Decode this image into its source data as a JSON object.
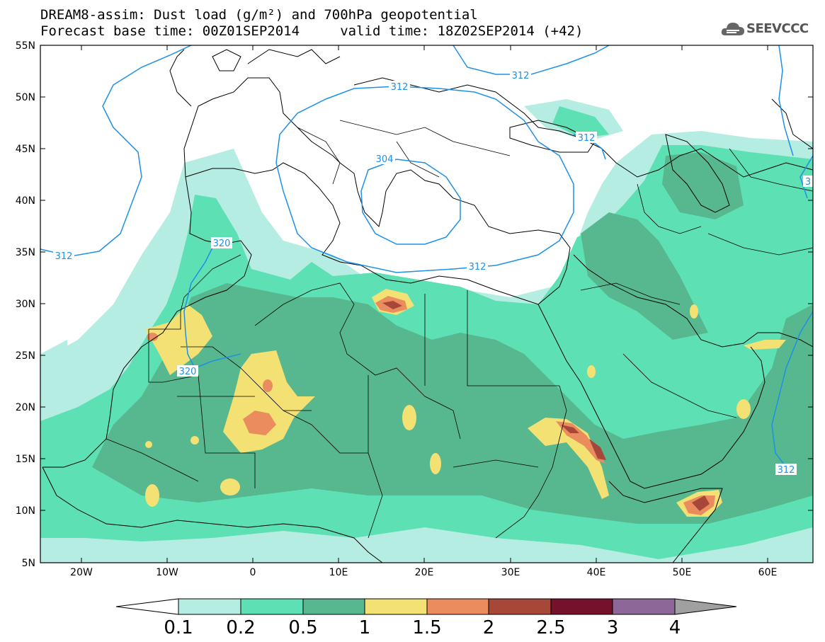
{
  "header": {
    "title_line1": "DREAM8-assim: Dust load (g/m²) and 700hPa geopotential",
    "title_line2": "Forecast base time: 00Z01SEP2014     valid time: 18Z02SEP2014 (+42)",
    "logo_text": "SEEVCCC"
  },
  "map": {
    "lat_labels": [
      "55N",
      "50N",
      "45N",
      "40N",
      "35N",
      "30N",
      "25N",
      "20N",
      "15N",
      "10N",
      "5N"
    ],
    "lon_labels": [
      "20W",
      "10W",
      "0",
      "10E",
      "20E",
      "30E",
      "40E",
      "50E",
      "60E"
    ],
    "extent": {
      "lon_min": -25,
      "lon_max": 65,
      "lat_min": 5,
      "lat_max": 55
    },
    "contour_labels": [
      "312",
      "312",
      "312",
      "304",
      "312",
      "312",
      "320",
      "320",
      "312",
      "3"
    ]
  },
  "colorbar": {
    "labels": [
      "0.1",
      "0.2",
      "0.5",
      "1",
      "1.5",
      "2",
      "2.5",
      "3",
      "4"
    ],
    "colors": [
      "#b6ede2",
      "#5ce0b4",
      "#57b78f",
      "#f3e173",
      "#eb8c5e",
      "#a6473a",
      "#75112a",
      "#8c6798",
      "#a0a0a0"
    ]
  },
  "colors": {
    "contour": "#1e90e6",
    "coast": "#000000"
  }
}
